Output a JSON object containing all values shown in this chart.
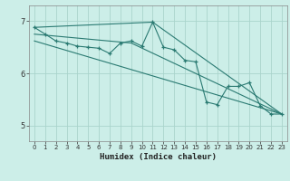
{
  "xlabel": "Humidex (Indice chaleur)",
  "background_color": "#cceee8",
  "grid_color": "#aad4cc",
  "line_color": "#2a7a72",
  "xlim": [
    -0.5,
    23.5
  ],
  "ylim": [
    4.7,
    7.3
  ],
  "yticks": [
    5,
    6,
    7
  ],
  "xticks": [
    0,
    1,
    2,
    3,
    4,
    5,
    6,
    7,
    8,
    9,
    10,
    11,
    12,
    13,
    14,
    15,
    16,
    17,
    18,
    19,
    20,
    21,
    22,
    23
  ],
  "series1_x": [
    0,
    1,
    2,
    3,
    4,
    5,
    6,
    7,
    8,
    9,
    10,
    11,
    12,
    13,
    14,
    15,
    16,
    17,
    18,
    19,
    20,
    21,
    22,
    23
  ],
  "series1_y": [
    6.88,
    6.75,
    6.62,
    6.58,
    6.52,
    6.5,
    6.48,
    6.38,
    6.58,
    6.62,
    6.52,
    6.98,
    6.5,
    6.45,
    6.25,
    6.22,
    5.45,
    5.4,
    5.75,
    5.75,
    5.82,
    5.38,
    5.22,
    5.22
  ],
  "trend1_x": [
    0,
    9,
    23
  ],
  "trend1_y": [
    6.75,
    6.58,
    5.22
  ],
  "trend2_x": [
    0,
    11,
    23
  ],
  "trend2_y": [
    6.88,
    6.98,
    5.22
  ],
  "trend3_x": [
    0,
    23
  ],
  "trend3_y": [
    6.62,
    5.22
  ]
}
